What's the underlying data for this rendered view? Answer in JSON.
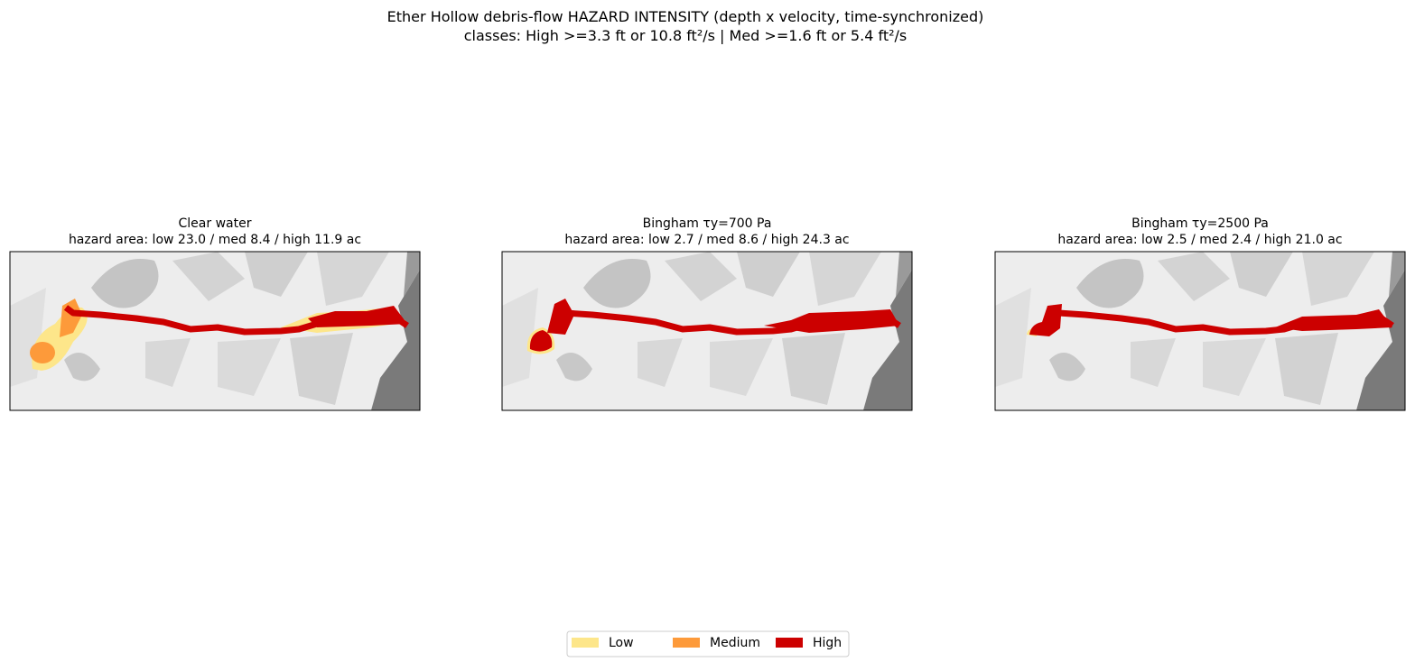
{
  "title": [
    "Ether Hollow debris-flow HAZARD INTENSITY (depth x velocity, time-synchronized)",
    "classes: High >=3.3 ft or 10.8 ft²/s | Med >=1.6 ft or 5.4 ft²/s"
  ],
  "panels": [
    {
      "title": [
        "Clear water",
        "hazard area: low 23.0 / med 8.4 / high 11.9 ac"
      ]
    },
    {
      "title": [
        "Bingham τy=700 Pa",
        "hazard area: low 2.7 / med 8.6 / high 24.3 ac"
      ]
    },
    {
      "title": [
        "Bingham τy=2500 Pa",
        "hazard area: low 2.5 / med 2.4 / high 21.0 ac"
      ]
    }
  ],
  "legend": {
    "items": [
      {
        "label": "Low",
        "color": "#fde68a"
      },
      {
        "label": "Medium",
        "color": "#fd9a3a"
      },
      {
        "label": "High",
        "color": "#cc0000"
      }
    ]
  }
}
